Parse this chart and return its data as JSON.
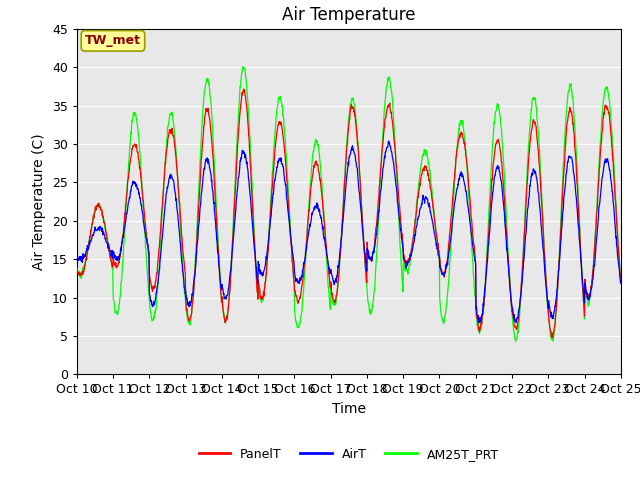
{
  "title": "Air Temperature",
  "ylabel": "Air Temperature (C)",
  "xlabel": "Time",
  "annotation": "TW_met",
  "annotation_color": "#8B0000",
  "annotation_bg": "#FFFF99",
  "annotation_edge": "#999900",
  "ylim": [
    0,
    45
  ],
  "yticks": [
    0,
    5,
    10,
    15,
    20,
    25,
    30,
    35,
    40,
    45
  ],
  "xlim_start": 0,
  "xlim_end": 15,
  "xtick_labels": [
    "Oct 10",
    "Oct 11",
    "Oct 12",
    "Oct 13",
    "Oct 14",
    "Oct 15",
    "Oct 16",
    "Oct 17",
    "Oct 18",
    "Oct 19",
    "Oct 20",
    "Oct 21",
    "Oct 22",
    "Oct 23",
    "Oct 24",
    "Oct 25"
  ],
  "legend_labels": [
    "PanelT",
    "AirT",
    "AM25T_PRT"
  ],
  "legend_colors": [
    "red",
    "blue",
    "lime"
  ],
  "plot_bg": "#e8e8e8",
  "grid_color": "#ffffff",
  "title_fontsize": 12,
  "axis_label_fontsize": 10,
  "tick_fontsize": 9,
  "panel_peaks": [
    22,
    30,
    32,
    34.5,
    37,
    33,
    27.5,
    35,
    35,
    27,
    31.5,
    30.5,
    33,
    34.5,
    35
  ],
  "panel_mins": [
    13,
    14,
    11,
    7,
    7,
    10,
    9.5,
    9.5,
    15,
    14.5,
    13,
    6,
    6,
    5,
    10
  ],
  "air_peaks": [
    19,
    25,
    26,
    28,
    29,
    28,
    22,
    29.5,
    30,
    23,
    26,
    27,
    26.5,
    28.5,
    28
  ],
  "air_mins": [
    15,
    15,
    9,
    9,
    10,
    13,
    12,
    12,
    15,
    14.5,
    13,
    7,
    7,
    7.5,
    10
  ],
  "am25_peaks": [
    22,
    34,
    34,
    38.5,
    40,
    36,
    30.5,
    36,
    38.5,
    29,
    33,
    35,
    36,
    37.5,
    37.5
  ],
  "am25_mins": [
    13,
    8,
    7,
    6.5,
    7,
    9.5,
    6,
    9,
    8,
    13.5,
    7,
    5.5,
    4.5,
    4.5,
    9.5
  ]
}
